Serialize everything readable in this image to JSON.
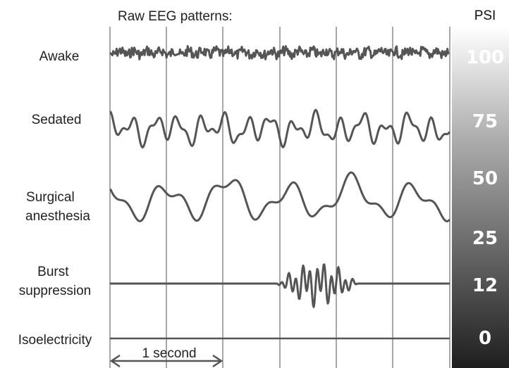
{
  "title": "Raw EEG patterns:",
  "rows": [
    {
      "label_lines": [
        "Awake"
      ]
    },
    {
      "label_lines": [
        "Sedated"
      ]
    },
    {
      "label_lines": [
        "Surgical",
        "anesthesia"
      ]
    },
    {
      "label_lines": [
        "Burst",
        "suppression"
      ]
    },
    {
      "label_lines": [
        "Isoelectricity"
      ]
    }
  ],
  "time_scale": {
    "label": "1 second"
  },
  "psi_scale": {
    "title": "PSI",
    "ticks": [
      "100",
      "75",
      "50",
      "25",
      "12",
      "0"
    ],
    "gradient_top_color": "#ffffff",
    "gradient_bottom_color": "#1e1e1e"
  },
  "colors": {
    "trace": "#555555",
    "gridline": "#7a7a7a",
    "label": "#222222"
  }
}
